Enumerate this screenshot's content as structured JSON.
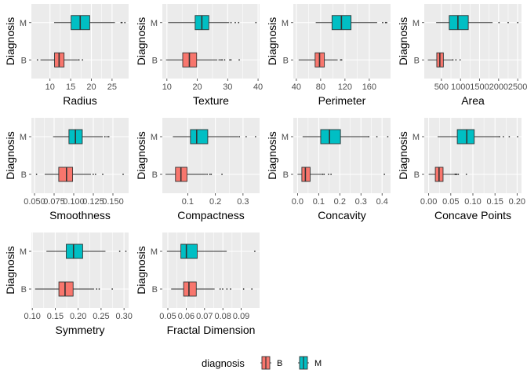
{
  "chart_data": {
    "type": "boxplot",
    "layout": "facet grid, 3 rows x 4 columns",
    "ylabel": "Diagnosis",
    "categories": [
      "B",
      "M"
    ],
    "colors": {
      "B": "#F8766D",
      "M": "#00BFC4",
      "panel": "#EBEBEB",
      "grid": "#FFFFFF"
    },
    "legend": {
      "title": "diagnosis",
      "position": "bottom",
      "entries": [
        "B",
        "M"
      ]
    },
    "panels": [
      {
        "xlabel": "Radius",
        "xlim": [
          5.5,
          29
        ],
        "ticks": [
          10,
          15,
          20,
          25
        ],
        "tick_labels": [
          "10",
          "15",
          "20",
          "25"
        ],
        "boxes": {
          "B": {
            "whisker_low": 7.7,
            "q1": 11.1,
            "median": 12.2,
            "q3": 13.4,
            "whisker_high": 16.8,
            "outliers": [
              6.98,
              17.0,
              17.85
            ]
          },
          "M": {
            "whisker_low": 11.0,
            "q1": 15.1,
            "median": 17.3,
            "q3": 19.6,
            "whisker_high": 25.7,
            "outliers": [
              27.2,
              27.4,
              28.1
            ]
          }
        }
      },
      {
        "xlabel": "Texture",
        "xlim": [
          8.5,
          40.5
        ],
        "ticks": [
          10,
          20,
          30,
          40
        ],
        "tick_labels": [
          "10",
          "20",
          "30",
          "40"
        ],
        "boxes": {
          "B": {
            "whisker_low": 9.7,
            "q1": 15.2,
            "median": 17.4,
            "q3": 19.8,
            "whisker_high": 26.6,
            "outliers": [
              27.2,
              27.8,
              28.2,
              29.0,
              30.7,
              31.1,
              33.8
            ]
          },
          "M": {
            "whisker_low": 10.4,
            "q1": 19.3,
            "median": 21.5,
            "q3": 23.8,
            "whisker_high": 30.5,
            "outliers": [
              31.1,
              32.5,
              33.6,
              39.3
            ]
          }
        }
      },
      {
        "xlabel": "Perimeter",
        "xlim": [
          35,
          195
        ],
        "ticks": [
          40,
          80,
          120,
          160
        ],
        "tick_labels": [
          "40",
          "80",
          "120",
          "160"
        ],
        "boxes": {
          "B": {
            "whisker_low": 43.8,
            "q1": 70.9,
            "median": 78.2,
            "q3": 86.1,
            "whisker_high": 108.0,
            "outliers": [
              112.8,
              114.6
            ]
          },
          "M": {
            "whisker_low": 71.9,
            "q1": 98.7,
            "median": 114.2,
            "q3": 130.0,
            "whisker_high": 173.0,
            "outliers": [
              182.1,
              186.9,
              188.5
            ]
          }
        }
      },
      {
        "xlabel": "Area",
        "xlim": [
          50,
          2600
        ],
        "ticks": [
          500,
          1000,
          1500,
          2000,
          2500
        ],
        "tick_labels": [
          "500",
          "1000",
          "1500",
          "2000",
          "2500"
        ],
        "boxes": {
          "B": {
            "whisker_low": 143.5,
            "q1": 378.2,
            "median": 458.4,
            "q3": 551.1,
            "whisker_high": 799.0,
            "outliers": [
              800,
              880,
              990
            ]
          },
          "M": {
            "whisker_low": 361.6,
            "q1": 705.3,
            "median": 932.0,
            "q3": 1204.0,
            "whisker_high": 1841.0,
            "outliers": [
              2010,
              2250,
              2501
            ]
          }
        }
      },
      {
        "xlabel": "Smoothness",
        "xlim": [
          0.046,
          0.17
        ],
        "ticks": [
          0.05,
          0.075,
          0.1,
          0.125,
          0.15
        ],
        "tick_labels": [
          "0.050",
          "0.075",
          "0.100",
          "0.125",
          "0.150"
        ],
        "boxes": {
          "B": {
            "whisker_low": 0.063,
            "q1": 0.0809,
            "median": 0.0908,
            "q3": 0.0986,
            "whisker_high": 0.122,
            "outliers": [
              0.0526,
              0.1249,
              0.1278,
              0.137,
              0.163
            ]
          },
          "M": {
            "whisker_low": 0.0737,
            "q1": 0.0939,
            "median": 0.1022,
            "q3": 0.1109,
            "whisker_high": 0.1371,
            "outliers": [
              0.1398,
              0.1425,
              0.1447
            ]
          }
        }
      },
      {
        "xlabel": "Compactness",
        "xlim": [
          0.008,
          0.36
        ],
        "ticks": [
          0.1,
          0.2,
          0.3
        ],
        "tick_labels": [
          "0.1",
          "0.2",
          "0.3"
        ],
        "boxes": {
          "B": {
            "whisker_low": 0.0194,
            "q1": 0.0556,
            "median": 0.0753,
            "q3": 0.0977,
            "whisker_high": 0.16,
            "outliers": [
              0.163,
              0.17,
              0.18,
              0.185,
              0.2239
            ]
          },
          "M": {
            "whisker_low": 0.0461,
            "q1": 0.1097,
            "median": 0.1323,
            "q3": 0.1724,
            "whisker_high": 0.2832,
            "outliers": [
              0.2867,
              0.3114,
              0.3454
            ]
          }
        }
      },
      {
        "xlabel": "Concavity",
        "xlim": [
          -0.02,
          0.44
        ],
        "ticks": [
          0.0,
          0.1,
          0.2,
          0.3,
          0.4
        ],
        "tick_labels": [
          "0.0",
          "0.1",
          "0.2",
          "0.3",
          "0.4"
        ],
        "boxes": {
          "B": {
            "whisker_low": 0.0,
            "q1": 0.0204,
            "median": 0.0371,
            "q3": 0.0596,
            "whisker_high": 0.116,
            "outliers": [
              0.1191,
              0.1258,
              0.1466,
              0.1585,
              0.4108
            ]
          },
          "M": {
            "whisker_low": 0.024,
            "q1": 0.1096,
            "median": 0.1513,
            "q3": 0.2031,
            "whisker_high": 0.3339,
            "outliers": [
              0.3368,
              0.3754,
              0.4268
            ]
          }
        }
      },
      {
        "xlabel": "Concave Points",
        "xlim": [
          -0.01,
          0.21
        ],
        "ticks": [
          0.0,
          0.05,
          0.1,
          0.15,
          0.2
        ],
        "tick_labels": [
          "0.00",
          "0.05",
          "0.10",
          "0.15",
          "0.20"
        ],
        "boxes": {
          "B": {
            "whisker_low": 0.0,
            "q1": 0.015,
            "median": 0.0234,
            "q3": 0.0325,
            "whisker_high": 0.0585,
            "outliers": [
              0.0596,
              0.0608,
              0.062,
              0.0638,
              0.0671,
              0.0853
            ]
          },
          "M": {
            "whisker_low": 0.0203,
            "q1": 0.0647,
            "median": 0.0862,
            "q3": 0.103,
            "whisker_high": 0.1595,
            "outliers": [
              0.1604,
              0.1689,
              0.1823,
              0.2012
            ]
          }
        }
      },
      {
        "xlabel": "Symmetry",
        "xlim": [
          0.098,
          0.31
        ],
        "ticks": [
          0.1,
          0.15,
          0.2,
          0.25,
          0.3
        ],
        "tick_labels": [
          "0.10",
          "0.15",
          "0.20",
          "0.25",
          "0.30"
        ],
        "boxes": {
          "B": {
            "whisker_low": 0.106,
            "q1": 0.158,
            "median": 0.1714,
            "q3": 0.189,
            "whisker_high": 0.2349,
            "outliers": [
              0.2403,
              0.2459,
              0.2743
            ]
          },
          "M": {
            "whisker_low": 0.1308,
            "q1": 0.1741,
            "median": 0.1899,
            "q3": 0.2098,
            "whisker_high": 0.2595,
            "outliers": [
              0.2906,
              0.304
            ]
          }
        }
      },
      {
        "xlabel": "Fractal Dimension",
        "xlim": [
          0.047,
          0.1
        ],
        "ticks": [
          0.05,
          0.06,
          0.07,
          0.08,
          0.09
        ],
        "tick_labels": [
          "0.05",
          "0.06",
          "0.07",
          "0.08",
          "0.09"
        ],
        "boxes": {
          "B": {
            "whisker_low": 0.0518,
            "q1": 0.0586,
            "median": 0.0615,
            "q3": 0.0655,
            "whisker_high": 0.0755,
            "outliers": [
              0.0785,
              0.0799,
              0.0822,
              0.0842,
              0.0913,
              0.0958
            ]
          },
          "M": {
            "whisker_low": 0.0495,
            "q1": 0.0571,
            "median": 0.0601,
            "q3": 0.066,
            "whisker_high": 0.0821,
            "outliers": [
              0.0974
            ]
          }
        }
      }
    ]
  }
}
